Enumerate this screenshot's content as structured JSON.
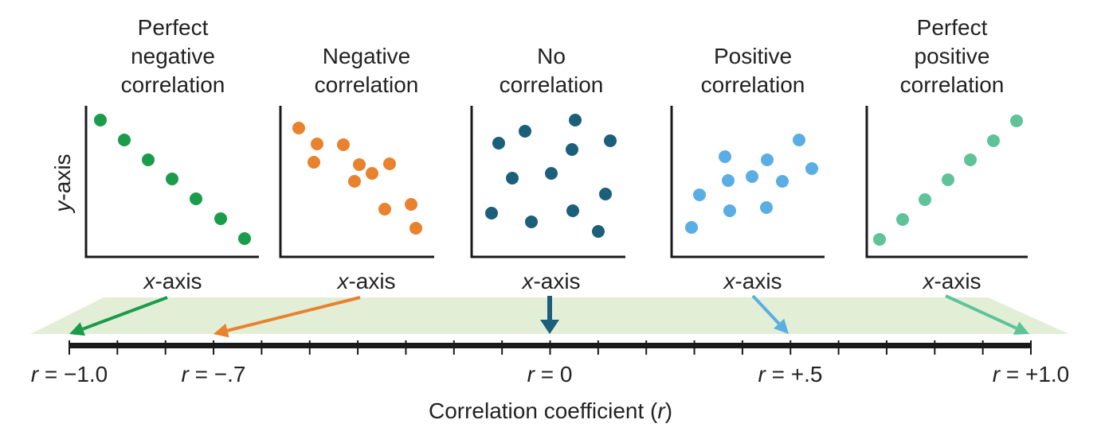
{
  "panels": [
    {
      "title": [
        "Perfect",
        "negative",
        "correlation"
      ]
    },
    {
      "title": [
        "Negative",
        "correlation"
      ]
    },
    {
      "title": [
        "No",
        "correlation"
      ]
    },
    {
      "title": [
        "Positive",
        "correlation"
      ]
    },
    {
      "title": [
        "Perfect",
        "positive",
        "correlation"
      ]
    }
  ],
  "y_axis_label": {
    "var": "y",
    "rest": "-axis"
  },
  "x_axis_label": {
    "var": "x",
    "rest": "-axis"
  },
  "scale_labels": [
    {
      "var": "r",
      "rest": " = −1.0"
    },
    {
      "var": "r",
      "rest": " = −.7"
    },
    {
      "var": "r",
      "rest": " = 0"
    },
    {
      "var": "r",
      "rest": " = +.5"
    },
    {
      "var": "r",
      "rest": " = +1.0"
    }
  ],
  "caption": {
    "before": "Correlation coefficient (",
    "var": "r",
    "after": ")"
  }
}
